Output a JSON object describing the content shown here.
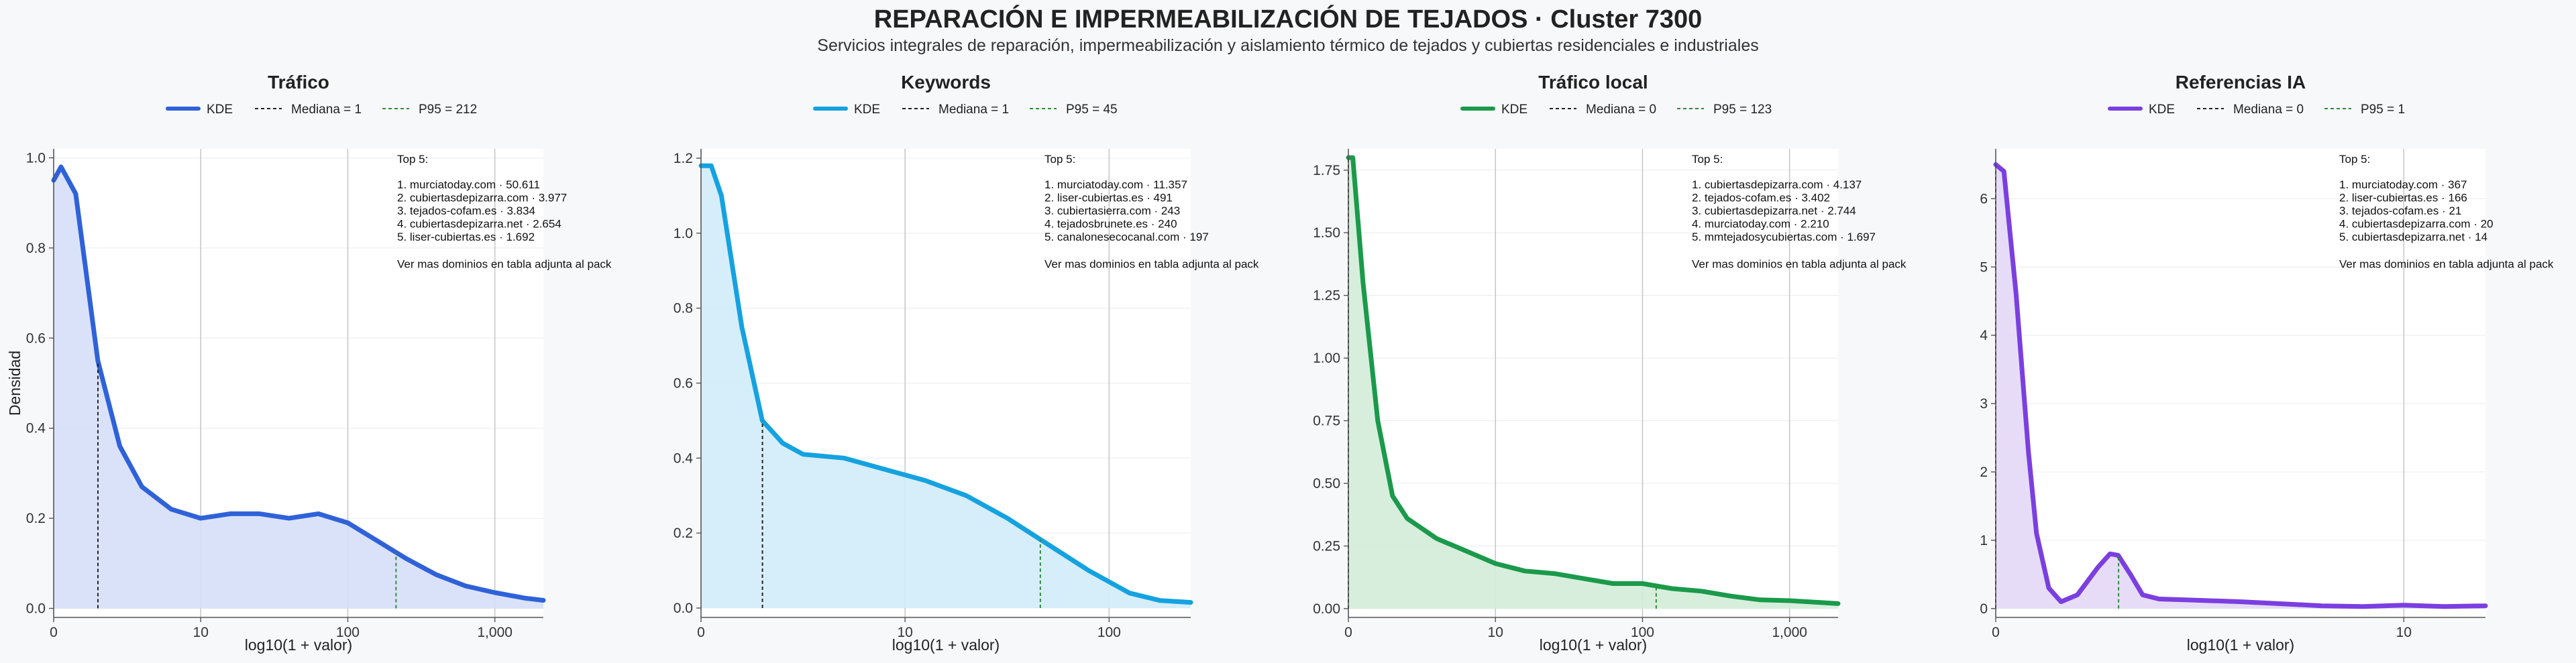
{
  "title": "REPARACIÓN E IMPERMEABILIZACIÓN DE TEJADOS · Cluster 7300",
  "subtitle": "Servicios integrales de reparación, impermeabilización y aislamiento térmico de tejados y cubiertas residenciales e industriales",
  "colors": {
    "median": "#222222",
    "p95": "#2e8b3a",
    "grid": "#c8c8c8",
    "hgrid": "#ececec"
  },
  "chart_data": [
    {
      "type": "area",
      "title": "Tráfico",
      "color": "#2f62d9",
      "fill": "#d6dffa",
      "xlabel": "log10(1 + valor)",
      "ylabel": "Densidad",
      "xlim": [
        0,
        3.33
      ],
      "ylim": [
        -0.02,
        1.02
      ],
      "xticks": [
        0,
        1,
        2,
        3
      ],
      "xtick_labels": [
        "0",
        "10",
        "100",
        "1,000"
      ],
      "yticks": [
        0,
        0.2,
        0.4,
        0.6,
        0.8,
        1.0
      ],
      "ytick_labels": [
        "0.0",
        "0.2",
        "0.4",
        "0.6",
        "0.8",
        "1.0"
      ],
      "legend": [
        "KDE",
        "Mediana = 1",
        "P95 = 212"
      ],
      "median_x": 0.301,
      "p95_x": 2.328,
      "kde": {
        "x": [
          0,
          0.05,
          0.15,
          0.3,
          0.45,
          0.6,
          0.8,
          1.0,
          1.2,
          1.4,
          1.6,
          1.8,
          2.0,
          2.2,
          2.4,
          2.6,
          2.8,
          3.0,
          3.2,
          3.33
        ],
        "y": [
          0.95,
          0.98,
          0.92,
          0.55,
          0.36,
          0.27,
          0.22,
          0.2,
          0.21,
          0.21,
          0.2,
          0.21,
          0.19,
          0.15,
          0.11,
          0.075,
          0.05,
          0.035,
          0.023,
          0.018
        ]
      },
      "top5": {
        "heading": "Top 5:",
        "items": [
          "1. murciatoday.com · 50.611",
          "2. cubiertasdepizarra.com · 3.977",
          "3. tejados-cofam.es · 3.834",
          "4. cubiertasdepizarra.net · 2.654",
          "5. liser-cubiertas.es · 1.692"
        ],
        "footer": "Ver mas dominios en tabla adjunta al pack"
      }
    },
    {
      "type": "area",
      "title": "Keywords",
      "color": "#15a2e0",
      "fill": "#d2ecf9",
      "xlabel": "log10(1 + valor)",
      "ylabel": "",
      "xlim": [
        0,
        2.4
      ],
      "ylim": [
        -0.025,
        1.225
      ],
      "xticks": [
        0,
        1,
        2
      ],
      "xtick_labels": [
        "0",
        "10",
        "100"
      ],
      "yticks": [
        0,
        0.2,
        0.4,
        0.6,
        0.8,
        1.0,
        1.2
      ],
      "ytick_labels": [
        "0.0",
        "0.2",
        "0.4",
        "0.6",
        "0.8",
        "1.0",
        "1.2"
      ],
      "legend": [
        "KDE",
        "Mediana = 1",
        "P95 = 45"
      ],
      "median_x": 0.301,
      "p95_x": 1.663,
      "kde": {
        "x": [
          0,
          0.05,
          0.1,
          0.2,
          0.3,
          0.4,
          0.5,
          0.7,
          0.9,
          1.1,
          1.3,
          1.5,
          1.7,
          1.9,
          2.1,
          2.25,
          2.4
        ],
        "y": [
          1.18,
          1.18,
          1.1,
          0.75,
          0.5,
          0.44,
          0.41,
          0.4,
          0.37,
          0.34,
          0.3,
          0.24,
          0.17,
          0.1,
          0.04,
          0.02,
          0.015
        ]
      },
      "top5": {
        "heading": "Top 5:",
        "items": [
          "1. murciatoday.com · 11.357",
          "2. liser-cubiertas.es · 491",
          "3. cubiertasierra.com · 243",
          "4. tejadosbrunete.es · 240",
          "5. canalonesecocanal.com · 197"
        ],
        "footer": "Ver mas dominios en tabla adjunta al pack"
      }
    },
    {
      "type": "area",
      "title": "Tráfico local",
      "color": "#1a9a4a",
      "fill": "#d3ecd9",
      "xlabel": "log10(1 + valor)",
      "ylabel": "",
      "xlim": [
        0,
        3.33
      ],
      "ylim": [
        -0.035,
        1.835
      ],
      "xticks": [
        0,
        1,
        2,
        3
      ],
      "xtick_labels": [
        "0",
        "10",
        "100",
        "1,000"
      ],
      "yticks": [
        0,
        0.25,
        0.5,
        0.75,
        1.0,
        1.25,
        1.5,
        1.75
      ],
      "ytick_labels": [
        "0.00",
        "0.25",
        "0.50",
        "0.75",
        "1.00",
        "1.25",
        "1.50",
        "1.75"
      ],
      "legend": [
        "KDE",
        "Mediana = 0",
        "P95 = 123"
      ],
      "median_x": 0,
      "p95_x": 2.093,
      "kde": {
        "x": [
          0,
          0.03,
          0.1,
          0.2,
          0.3,
          0.4,
          0.6,
          0.8,
          1.0,
          1.2,
          1.4,
          1.6,
          1.8,
          2.0,
          2.2,
          2.4,
          2.6,
          2.8,
          3.0,
          3.2,
          3.33
        ],
        "y": [
          1.8,
          1.8,
          1.3,
          0.75,
          0.45,
          0.36,
          0.28,
          0.23,
          0.18,
          0.15,
          0.14,
          0.12,
          0.1,
          0.1,
          0.08,
          0.07,
          0.05,
          0.035,
          0.032,
          0.025,
          0.02
        ]
      },
      "top5": {
        "heading": "Top 5:",
        "items": [
          "1. cubiertasdepizarra.com · 4.137",
          "2. tejados-cofam.es · 3.402",
          "3. cubiertasdepizarra.net · 2.744",
          "4. murciatoday.com · 2.210",
          "5. mmtejadosycubiertas.com · 1.697"
        ],
        "footer": "Ver mas dominios en tabla adjunta al pack"
      }
    },
    {
      "type": "area",
      "title": "Referencias IA",
      "color": "#7b3fe0",
      "fill": "#e3d8f6",
      "xlabel": "log10(1 + valor)",
      "ylabel": "",
      "xlim": [
        0,
        1.2
      ],
      "ylim": [
        -0.13,
        6.73
      ],
      "xticks": [
        0,
        1
      ],
      "xtick_labels": [
        "0",
        "10"
      ],
      "yticks": [
        0,
        1,
        2,
        3,
        4,
        5,
        6
      ],
      "ytick_labels": [
        "0",
        "1",
        "2",
        "3",
        "4",
        "5",
        "6"
      ],
      "legend": [
        "KDE",
        "Mediana = 0",
        "P95 = 1"
      ],
      "median_x": 0,
      "p95_x": 0.301,
      "kde": {
        "x": [
          0,
          0.02,
          0.05,
          0.08,
          0.1,
          0.13,
          0.16,
          0.2,
          0.25,
          0.28,
          0.3,
          0.33,
          0.36,
          0.4,
          0.5,
          0.6,
          0.7,
          0.8,
          0.9,
          1.0,
          1.1,
          1.2
        ],
        "y": [
          6.5,
          6.4,
          4.6,
          2.3,
          1.1,
          0.3,
          0.1,
          0.2,
          0.6,
          0.8,
          0.78,
          0.5,
          0.2,
          0.14,
          0.12,
          0.1,
          0.07,
          0.04,
          0.03,
          0.05,
          0.03,
          0.04
        ]
      },
      "top5": {
        "heading": "Top 5:",
        "items": [
          "1. murciatoday.com · 367",
          "2. liser-cubiertas.es · 166",
          "3. tejados-cofam.es · 21",
          "4. cubiertasdepizarra.com · 20",
          "5. cubiertasdepizarra.net · 14"
        ],
        "footer": "Ver mas dominios en tabla adjunta al pack"
      }
    }
  ]
}
